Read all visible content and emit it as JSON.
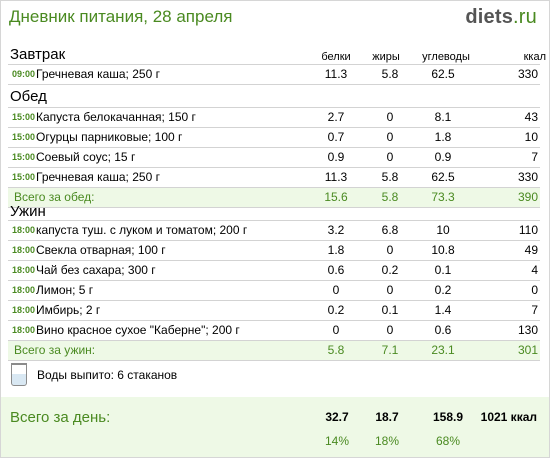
{
  "header": {
    "title": "Дневник питания, 28 апреля",
    "logo_main": "diets",
    "logo_tld": ".ru"
  },
  "columns": {
    "protein": "белки",
    "fat": "жиры",
    "carbs": "углеводы",
    "kcal": "ккал"
  },
  "breakfast": {
    "title": "Завтрак",
    "rows": [
      {
        "time": "09:00",
        "name": "Гречневая каша; 250 г",
        "p": "11.3",
        "f": "5.8",
        "c": "62.5",
        "k": "330"
      }
    ]
  },
  "lunch": {
    "title": "Обед",
    "rows": [
      {
        "time": "15:00",
        "name": "Капуста белокачанная; 150 г",
        "p": "2.7",
        "f": "0",
        "c": "8.1",
        "k": "43"
      },
      {
        "time": "15:00",
        "name": "Огурцы парниковые; 100 г",
        "p": "0.7",
        "f": "0",
        "c": "1.8",
        "k": "10"
      },
      {
        "time": "15:00",
        "name": "Соевый соус; 15 г",
        "p": "0.9",
        "f": "0",
        "c": "0.9",
        "k": "7"
      },
      {
        "time": "15:00",
        "name": "Гречневая каша; 250 г",
        "p": "11.3",
        "f": "5.8",
        "c": "62.5",
        "k": "330"
      }
    ],
    "total": {
      "label": "Всего за обед:",
      "p": "15.6",
      "f": "5.8",
      "c": "73.3",
      "k": "390"
    }
  },
  "dinner": {
    "title": "Ужин",
    "rows": [
      {
        "time": "18:00",
        "name": "капуста туш. с луком и томатом; 200 г",
        "p": "3.2",
        "f": "6.8",
        "c": "10",
        "k": "110"
      },
      {
        "time": "18:00",
        "name": "Свекла отварная; 100 г",
        "p": "1.8",
        "f": "0",
        "c": "10.8",
        "k": "49"
      },
      {
        "time": "18:00",
        "name": "Чай без сахара; 300 г",
        "p": "0.6",
        "f": "0.2",
        "c": "0.1",
        "k": "4"
      },
      {
        "time": "18:00",
        "name": "Лимон; 5 г",
        "p": "0",
        "f": "0",
        "c": "0.2",
        "k": "0"
      },
      {
        "time": "18:00",
        "name": "Имбирь; 2 г",
        "p": "0.2",
        "f": "0.1",
        "c": "1.4",
        "k": "7"
      },
      {
        "time": "18:00",
        "name": "Вино красное сухое \"Каберне\"; 200 г",
        "p": "0",
        "f": "0",
        "c": "0.6",
        "k": "130"
      }
    ],
    "total": {
      "label": "Всего за ужин:",
      "p": "5.8",
      "f": "7.1",
      "c": "23.1",
      "k": "301"
    }
  },
  "water": {
    "text": "Воды выпито: 6 стаканов",
    "icon": "glass-icon"
  },
  "day_total": {
    "label": "Всего за день:",
    "p": "32.7",
    "f": "18.7",
    "c": "158.9",
    "k": "1021 ккал",
    "p_pct": "14%",
    "f_pct": "18%",
    "c_pct": "68%"
  },
  "colors": {
    "accent": "#4a8a21",
    "total_bg": "#eef9e6",
    "rule": "#d3d3d3"
  }
}
